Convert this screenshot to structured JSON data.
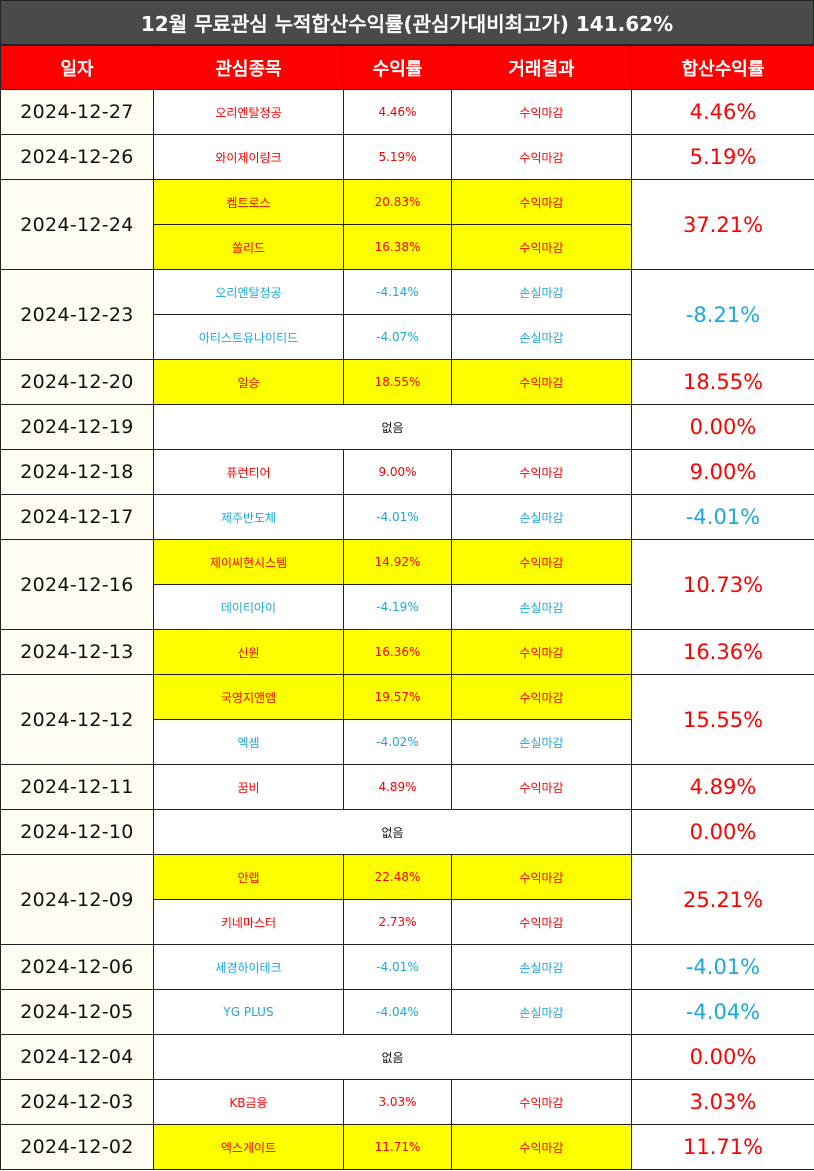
{
  "title": "12월 무료관심 누적합산수익률(관심가대비최고가) 141.62%",
  "headers": [
    "일자",
    "관심종목",
    "수익률",
    "거래결과",
    "합산수익률"
  ],
  "colors": {
    "header_bg": "#ff0000",
    "title_bg": "#4a4a4a",
    "highlight": "#ffff00",
    "profit": "#ff0000",
    "loss": "#1ba8de"
  },
  "groups": [
    {
      "date": "2024-12-27",
      "total": "4.46%",
      "sign": "pos",
      "stocks": [
        {
          "name": "오리엔탈정공",
          "rate": "4.46%",
          "result": "수익마감",
          "sign": "pos",
          "highlight": false
        }
      ]
    },
    {
      "date": "2024-12-26",
      "total": "5.19%",
      "sign": "pos",
      "stocks": [
        {
          "name": "와이제이링크",
          "rate": "5.19%",
          "result": "수익마감",
          "sign": "pos",
          "highlight": false
        }
      ]
    },
    {
      "date": "2024-12-24",
      "total": "37.21%",
      "sign": "pos",
      "stocks": [
        {
          "name": "켐트로스",
          "rate": "20.83%",
          "result": "수익마감",
          "sign": "pos",
          "highlight": true
        },
        {
          "name": "쏠리드",
          "rate": "16.38%",
          "result": "수익마감",
          "sign": "pos",
          "highlight": true
        }
      ]
    },
    {
      "date": "2024-12-23",
      "total": "-8.21%",
      "sign": "neg",
      "stocks": [
        {
          "name": "오리엔탈정공",
          "rate": "-4.14%",
          "result": "손실마감",
          "sign": "neg",
          "highlight": false
        },
        {
          "name": "아티스트유나이티드",
          "rate": "-4.07%",
          "result": "손실마감",
          "sign": "neg",
          "highlight": false
        }
      ]
    },
    {
      "date": "2024-12-20",
      "total": "18.55%",
      "sign": "pos",
      "stocks": [
        {
          "name": "일승",
          "rate": "18.55%",
          "result": "수익마감",
          "sign": "pos",
          "highlight": true
        }
      ]
    },
    {
      "date": "2024-12-19",
      "total": "0.00%",
      "sign": "pos",
      "none": "없음"
    },
    {
      "date": "2024-12-18",
      "total": "9.00%",
      "sign": "pos",
      "stocks": [
        {
          "name": "퓨런티어",
          "rate": "9.00%",
          "result": "수익마감",
          "sign": "pos",
          "highlight": false
        }
      ]
    },
    {
      "date": "2024-12-17",
      "total": "-4.01%",
      "sign": "neg",
      "stocks": [
        {
          "name": "제주반도체",
          "rate": "-4.01%",
          "result": "손실마감",
          "sign": "neg",
          "highlight": false
        }
      ]
    },
    {
      "date": "2024-12-16",
      "total": "10.73%",
      "sign": "pos",
      "stocks": [
        {
          "name": "제이씨현시스템",
          "rate": "14.92%",
          "result": "수익마감",
          "sign": "pos",
          "highlight": true
        },
        {
          "name": "데이티아이",
          "rate": "-4.19%",
          "result": "손실마감",
          "sign": "neg",
          "highlight": false
        }
      ]
    },
    {
      "date": "2024-12-13",
      "total": "16.36%",
      "sign": "pos",
      "stocks": [
        {
          "name": "신원",
          "rate": "16.36%",
          "result": "수익마감",
          "sign": "pos",
          "highlight": true
        }
      ]
    },
    {
      "date": "2024-12-12",
      "total": "15.55%",
      "sign": "pos",
      "stocks": [
        {
          "name": "국영지앤엠",
          "rate": "19.57%",
          "result": "수익마감",
          "sign": "pos",
          "highlight": true
        },
        {
          "name": "엑셈",
          "rate": "-4.02%",
          "result": "손실마감",
          "sign": "neg",
          "highlight": false
        }
      ]
    },
    {
      "date": "2024-12-11",
      "total": "4.89%",
      "sign": "pos",
      "stocks": [
        {
          "name": "꿈비",
          "rate": "4.89%",
          "result": "수익마감",
          "sign": "pos",
          "highlight": false
        }
      ]
    },
    {
      "date": "2024-12-10",
      "total": "0.00%",
      "sign": "pos",
      "none": "없음"
    },
    {
      "date": "2024-12-09",
      "total": "25.21%",
      "sign": "pos",
      "stocks": [
        {
          "name": "안랩",
          "rate": "22.48%",
          "result": "수익마감",
          "sign": "pos",
          "highlight": true
        },
        {
          "name": "키네마스터",
          "rate": "2.73%",
          "result": "수익마감",
          "sign": "pos",
          "highlight": false
        }
      ]
    },
    {
      "date": "2024-12-06",
      "total": "-4.01%",
      "sign": "neg",
      "stocks": [
        {
          "name": "세경하이테크",
          "rate": "-4.01%",
          "result": "손실마감",
          "sign": "neg",
          "highlight": false
        }
      ]
    },
    {
      "date": "2024-12-05",
      "total": "-4.04%",
      "sign": "neg",
      "stocks": [
        {
          "name": "YG PLUS",
          "rate": "-4.04%",
          "result": "손실마감",
          "sign": "neg",
          "highlight": false
        }
      ]
    },
    {
      "date": "2024-12-04",
      "total": "0.00%",
      "sign": "pos",
      "none": "없음"
    },
    {
      "date": "2024-12-03",
      "total": "3.03%",
      "sign": "pos",
      "stocks": [
        {
          "name": "KB금융",
          "rate": "3.03%",
          "result": "수익마감",
          "sign": "pos",
          "highlight": false
        }
      ]
    },
    {
      "date": "2024-12-02",
      "total": "11.71%",
      "sign": "pos",
      "stocks": [
        {
          "name": "엑스게이트",
          "rate": "11.71%",
          "result": "수익마감",
          "sign": "pos",
          "highlight": true
        }
      ]
    }
  ]
}
